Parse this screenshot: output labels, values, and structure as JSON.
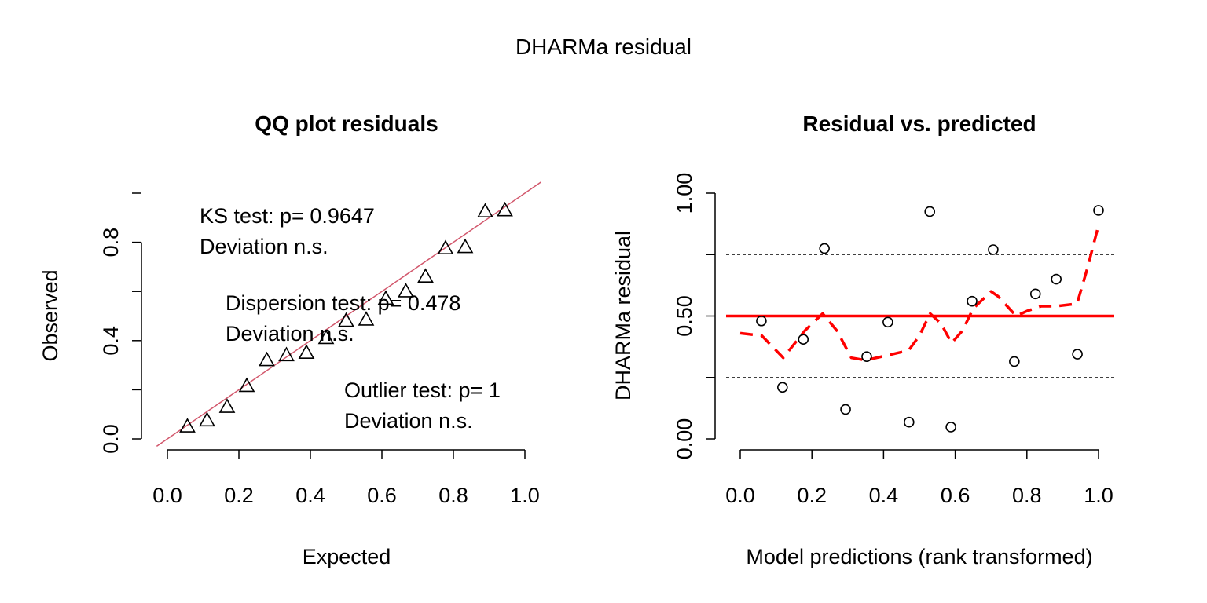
{
  "figure_title": "DHARMa residual",
  "chart_data": [
    {
      "type": "scatter",
      "title": "QQ plot residuals",
      "xlabel": "Expected",
      "ylabel": "Observed",
      "xlim": [
        0,
        1
      ],
      "ylim": [
        0,
        1
      ],
      "xticks": [
        "0.0",
        "0.2",
        "0.4",
        "0.6",
        "0.8",
        "1.0"
      ],
      "yticks": [
        "0.0",
        "0.4",
        "0.8"
      ],
      "marker": "triangle",
      "points": {
        "x": [
          0.056,
          0.111,
          0.167,
          0.222,
          0.278,
          0.333,
          0.389,
          0.444,
          0.5,
          0.556,
          0.611,
          0.667,
          0.722,
          0.778,
          0.833,
          0.889,
          0.944
        ],
        "y": [
          0.05,
          0.075,
          0.13,
          0.215,
          0.32,
          0.34,
          0.35,
          0.41,
          0.48,
          0.485,
          0.57,
          0.6,
          0.66,
          0.775,
          0.78,
          0.925,
          0.93
        ]
      },
      "reference_line": {
        "slope": 1,
        "intercept": 0,
        "color": "#d2576c"
      },
      "annotations": [
        {
          "lines": [
            "KS test: p= 0.9647",
            "Deviation  n.s."
          ]
        },
        {
          "lines": [
            "Dispersion test: p= 0.478",
            "Deviation  n.s."
          ]
        },
        {
          "lines": [
            "Outlier test: p= 1",
            "Deviation  n.s."
          ]
        }
      ]
    },
    {
      "type": "scatter",
      "title": "Residual vs. predicted",
      "xlabel": "Model predictions (rank transformed)",
      "ylabel": "DHARMa residual",
      "xlim": [
        0,
        1
      ],
      "ylim": [
        0,
        1
      ],
      "xticks": [
        "0.0",
        "0.2",
        "0.4",
        "0.6",
        "0.8",
        "1.0"
      ],
      "yticks": [
        "0.00",
        "0.50",
        "1.00"
      ],
      "yminor_ticks": [
        0.25,
        0.75
      ],
      "marker": "circle",
      "points": {
        "x": [
          0.059,
          0.118,
          0.176,
          0.235,
          0.294,
          0.353,
          0.412,
          0.471,
          0.529,
          0.588,
          0.647,
          0.706,
          0.765,
          0.824,
          0.882,
          0.941,
          1.0
        ],
        "y": [
          0.48,
          0.21,
          0.405,
          0.775,
          0.12,
          0.335,
          0.475,
          0.068,
          0.925,
          0.048,
          0.56,
          0.77,
          0.315,
          0.59,
          0.65,
          0.345,
          0.93
        ]
      },
      "reference_lines": [
        {
          "y": 0.5,
          "style": "solid",
          "color": "#ff0000"
        },
        {
          "y": 0.25,
          "style": "dashed",
          "color": "#000000"
        },
        {
          "y": 0.75,
          "style": "dashed",
          "color": "#000000"
        }
      ],
      "smooth_line": {
        "color": "#ff0000",
        "style": "dashed",
        "x": [
          0.0,
          0.06,
          0.12,
          0.18,
          0.23,
          0.27,
          0.31,
          0.35,
          0.41,
          0.47,
          0.5,
          0.53,
          0.56,
          0.59,
          0.62,
          0.65,
          0.7,
          0.72,
          0.77,
          0.8,
          0.84,
          0.88,
          0.94,
          0.97,
          1.0
        ],
        "y": [
          0.43,
          0.42,
          0.33,
          0.44,
          0.51,
          0.44,
          0.33,
          0.32,
          0.34,
          0.36,
          0.42,
          0.51,
          0.47,
          0.39,
          0.44,
          0.53,
          0.6,
          0.58,
          0.5,
          0.52,
          0.54,
          0.54,
          0.55,
          0.7,
          0.87
        ]
      }
    }
  ]
}
